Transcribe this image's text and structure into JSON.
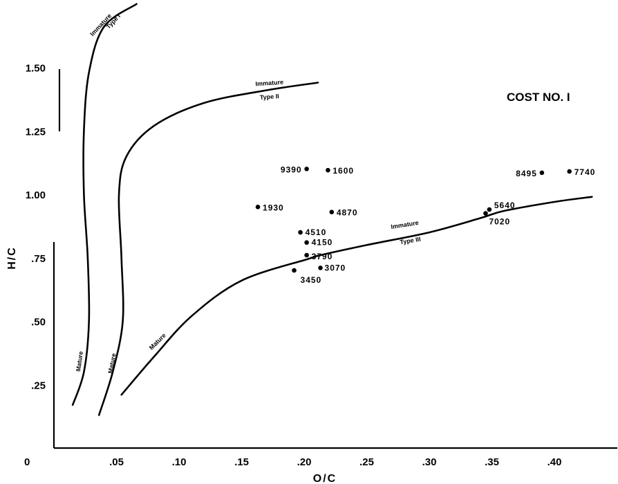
{
  "chart_data": {
    "type": "scatter",
    "title": "COST NO. I",
    "xlabel": "O/C",
    "ylabel": "H/C",
    "xlim": [
      0,
      0.45
    ],
    "ylim": [
      0,
      1.65
    ],
    "x_ticks": [
      ".05",
      ".10",
      ".15",
      ".20",
      ".25",
      ".30",
      ".35",
      ".40"
    ],
    "x_tick_values": [
      0.05,
      0.1,
      0.15,
      0.2,
      0.25,
      0.3,
      0.35,
      0.4
    ],
    "y_ticks": [
      ".25",
      ".50",
      ".75",
      "1.00",
      "1.25",
      "1.50"
    ],
    "y_tick_values": [
      0.25,
      0.5,
      0.75,
      1.0,
      1.25,
      1.5
    ],
    "origin_label": "0",
    "points": [
      {
        "label": "9390",
        "x": 0.202,
        "y": 1.1
      },
      {
        "label": "1600",
        "x": 0.219,
        "y": 1.095
      },
      {
        "label": "8495",
        "x": 0.39,
        "y": 1.085
      },
      {
        "label": "7740",
        "x": 0.412,
        "y": 1.09
      },
      {
        "label": "1930",
        "x": 0.163,
        "y": 0.95
      },
      {
        "label": "4870",
        "x": 0.222,
        "y": 0.93
      },
      {
        "label": "5640",
        "x": 0.348,
        "y": 0.94
      },
      {
        "label": "7020",
        "x": 0.345,
        "y": 0.925
      },
      {
        "label": "4510",
        "x": 0.197,
        "y": 0.85
      },
      {
        "label": "4150",
        "x": 0.202,
        "y": 0.81
      },
      {
        "label": "3790",
        "x": 0.202,
        "y": 0.76
      },
      {
        "label": "3070",
        "x": 0.213,
        "y": 0.71
      },
      {
        "label": "3450",
        "x": 0.192,
        "y": 0.7
      }
    ],
    "curves": [
      {
        "name": "Type I",
        "labels": [
          "Immature",
          "Type I",
          "Mature"
        ],
        "points": [
          [
            0.015,
            0.17
          ],
          [
            0.024,
            0.3
          ],
          [
            0.028,
            0.5
          ],
          [
            0.027,
            0.75
          ],
          [
            0.024,
            1.0
          ],
          [
            0.024,
            1.25
          ],
          [
            0.028,
            1.48
          ],
          [
            0.04,
            1.66
          ],
          [
            0.066,
            1.75
          ]
        ]
      },
      {
        "name": "Type II",
        "labels": [
          "Immature",
          "Type II",
          "Mature"
        ],
        "points": [
          [
            0.036,
            0.13
          ],
          [
            0.047,
            0.3
          ],
          [
            0.055,
            0.5
          ],
          [
            0.054,
            0.75
          ],
          [
            0.052,
            1.0
          ],
          [
            0.058,
            1.15
          ],
          [
            0.08,
            1.27
          ],
          [
            0.12,
            1.36
          ],
          [
            0.17,
            1.41
          ],
          [
            0.211,
            1.44
          ]
        ]
      },
      {
        "name": "Type III",
        "labels": [
          "Immature",
          "Type III",
          "Mature"
        ],
        "points": [
          [
            0.054,
            0.21
          ],
          [
            0.08,
            0.36
          ],
          [
            0.11,
            0.52
          ],
          [
            0.15,
            0.66
          ],
          [
            0.203,
            0.745
          ],
          [
            0.213,
            0.76
          ],
          [
            0.25,
            0.8
          ],
          [
            0.3,
            0.85
          ],
          [
            0.34,
            0.905
          ],
          [
            0.36,
            0.935
          ],
          [
            0.4,
            0.97
          ],
          [
            0.43,
            0.99
          ]
        ]
      }
    ],
    "grid": false,
    "legend": "none"
  }
}
